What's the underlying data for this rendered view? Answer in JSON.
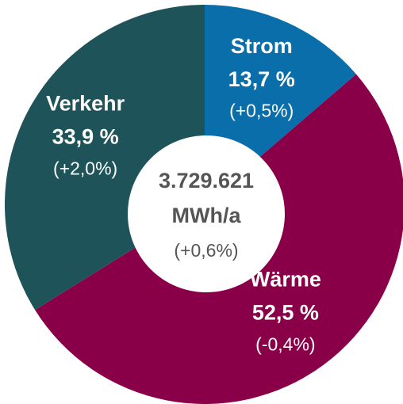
{
  "chart_data": {
    "type": "donut",
    "categories": [
      "Strom",
      "Wärme",
      "Verkehr"
    ],
    "values": [
      13.7,
      52.5,
      33.9
    ],
    "value_labels": [
      "13,7 %",
      "52,5 %",
      "33,9 %"
    ],
    "changes": [
      "(+0,5%)",
      "(-0,4%)",
      "(+2,0%)"
    ],
    "colors": [
      "#0a6eaa",
      "#8a0048",
      "#1e5459"
    ],
    "center_label": [
      "3.729.621",
      "MWh/a",
      "(+0,6%)"
    ]
  }
}
